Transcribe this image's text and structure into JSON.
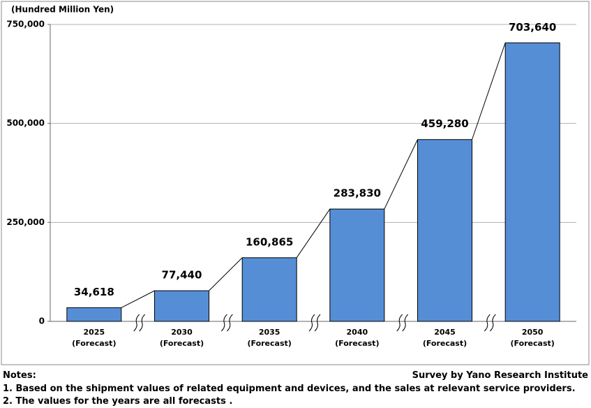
{
  "chart_data": {
    "type": "bar",
    "y_axis_label": "(Hundred Million Yen)",
    "categories": [
      "2025 (Forecast)",
      "2030 (Forecast)",
      "2035 (Forecast)",
      "2040 (Forecast)",
      "2045 (Forecast)",
      "2050 (Forecast)"
    ],
    "values": [
      34618,
      77440,
      160865,
      283830,
      459280,
      703640
    ],
    "value_labels": [
      "34,618",
      "77,440",
      "160,865",
      "283,830",
      "459,280",
      "703,640"
    ],
    "color": "#558ed5",
    "ylim": [
      0,
      750000
    ],
    "yticks": [
      0,
      {
        "value": 250000,
        "label": "250,000"
      },
      {
        "value": 500000,
        "label": "500,000"
      },
      {
        "value": 750000,
        "label": "750,000"
      }
    ],
    "grid": true
  },
  "notes": {
    "heading": "Notes:",
    "lines": [
      "1. Based on the shipment values of related equipment and devices, and the sales at relevant service providers.",
      "2. The values for the years are all forecasts ."
    ]
  },
  "source": "Survey by Yano Research Institute"
}
